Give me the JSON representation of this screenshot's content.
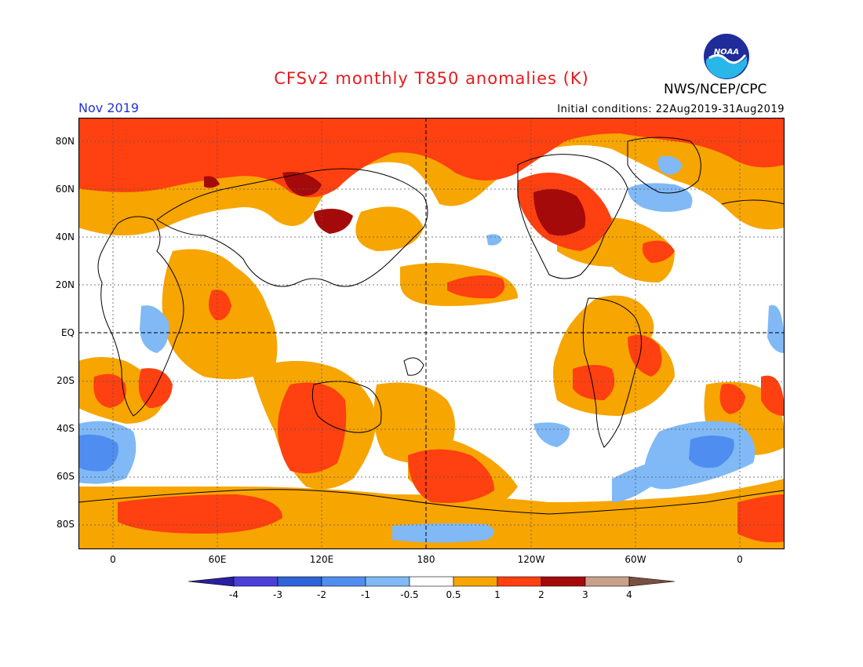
{
  "title": "CFSv2 monthly T850 anomalies (K)",
  "period": "Nov 2019",
  "initial_conditions": "Initial conditions: 22Aug2019-31Aug2019",
  "agency": "NWS/NCEP/CPC",
  "logo_text": "NOAA",
  "lat_labels": [
    "80N",
    "60N",
    "40N",
    "20N",
    "EQ",
    "20S",
    "40S",
    "60S",
    "80S"
  ],
  "lon_labels": [
    "0",
    "60E",
    "120E",
    "180",
    "120W",
    "60W",
    "0"
  ],
  "colorbar": {
    "labels": [
      "-4",
      "-3",
      "-2",
      "-1",
      "-0.5",
      "0.5",
      "1",
      "2",
      "3",
      "4"
    ],
    "colors": [
      "#2a1fa0",
      "#4a40d8",
      "#2e64d8",
      "#4f8ef0",
      "#80b9f6",
      "#ffffff",
      "#f7a500",
      "#ff4010",
      "#a50a0a",
      "#c9a08a",
      "#7a5040"
    ]
  },
  "palette": {
    "warm1": "#f7a500",
    "warm2": "#ff4010",
    "warm3": "#a50a0a",
    "cool1": "#80b9f6",
    "cool2": "#4f8ef0",
    "land_outline": "#000000"
  }
}
